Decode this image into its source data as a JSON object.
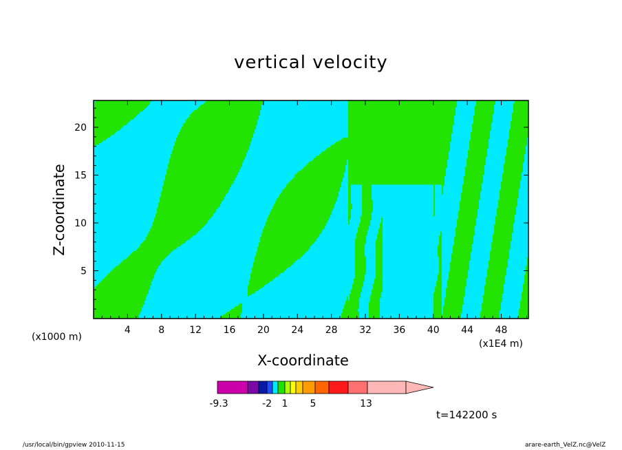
{
  "chart_data": {
    "type": "heatmap",
    "subtype": "filled-contour",
    "title": "vertical velocity",
    "xlabel": "X-coordinate",
    "ylabel": "Z-coordinate",
    "x_unit_left": "(x1000 m)",
    "x_unit_right": "(x1E4 m)",
    "x_ticks": [
      4,
      8,
      12,
      16,
      20,
      24,
      28,
      32,
      36,
      40,
      44,
      48
    ],
    "y_ticks": [
      5,
      10,
      15,
      20
    ],
    "xlim": [
      0,
      51.2
    ],
    "ylim": [
      0,
      22.8
    ],
    "colorbar": {
      "labels": [
        "-9.3",
        "-2",
        "1",
        "5",
        "13"
      ],
      "colors": [
        "#cc00aa",
        "#7a0aa8",
        "#0a1aa8",
        "#1e4cff",
        "#00e8ff",
        "#22e000",
        "#b0ff00",
        "#ffff00",
        "#ffd000",
        "#ff9d00",
        "#ff6600",
        "#ff1a1a",
        "#ff7070",
        "#ffb8b8"
      ],
      "extend": "max"
    },
    "dominant_levels": [
      {
        "name": "cyan",
        "color": "#00eaff"
      },
      {
        "name": "green",
        "color": "#22e400"
      }
    ],
    "time_label": "t=142200 s"
  },
  "footer": {
    "left": "/usr/local/bin/gpview   2010-11-15",
    "right": "arare-earth_VelZ.nc@VelZ"
  }
}
